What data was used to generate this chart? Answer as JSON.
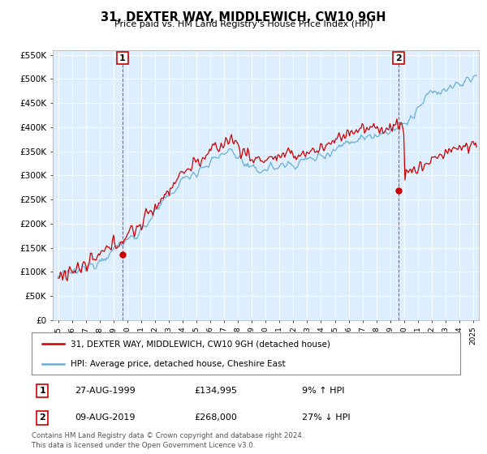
{
  "title": "31, DEXTER WAY, MIDDLEWICH, CW10 9GH",
  "subtitle": "Price paid vs. HM Land Registry's House Price Index (HPI)",
  "legend_line1": "31, DEXTER WAY, MIDDLEWICH, CW10 9GH (detached house)",
  "legend_line2": "HPI: Average price, detached house, Cheshire East",
  "annotation1_date": "27-AUG-1999",
  "annotation1_price": "£134,995",
  "annotation1_hpi": "9% ↑ HPI",
  "annotation2_date": "09-AUG-2019",
  "annotation2_price": "£268,000",
  "annotation2_hpi": "27% ↓ HPI",
  "footer": "Contains HM Land Registry data © Crown copyright and database right 2024.\nThis data is licensed under the Open Government Licence v3.0.",
  "hpi_color": "#6aaed6",
  "price_color": "#cc0000",
  "chart_bg_color": "#ddeeff",
  "background_color": "#ffffff",
  "grid_color": "#ffffff",
  "ylim": [
    0,
    560000
  ],
  "yticks": [
    0,
    50000,
    100000,
    150000,
    200000,
    250000,
    300000,
    350000,
    400000,
    450000,
    500000,
    550000
  ],
  "ytick_labels": [
    "£0",
    "£50K",
    "£100K",
    "£150K",
    "£200K",
    "£250K",
    "£300K",
    "£350K",
    "£400K",
    "£450K",
    "£500K",
    "£550K"
  ],
  "sale1_year": 1999.65,
  "sale1_price": 134995,
  "sale2_year": 2019.6,
  "sale2_price": 268000,
  "ann_box_color": "#cc0000"
}
